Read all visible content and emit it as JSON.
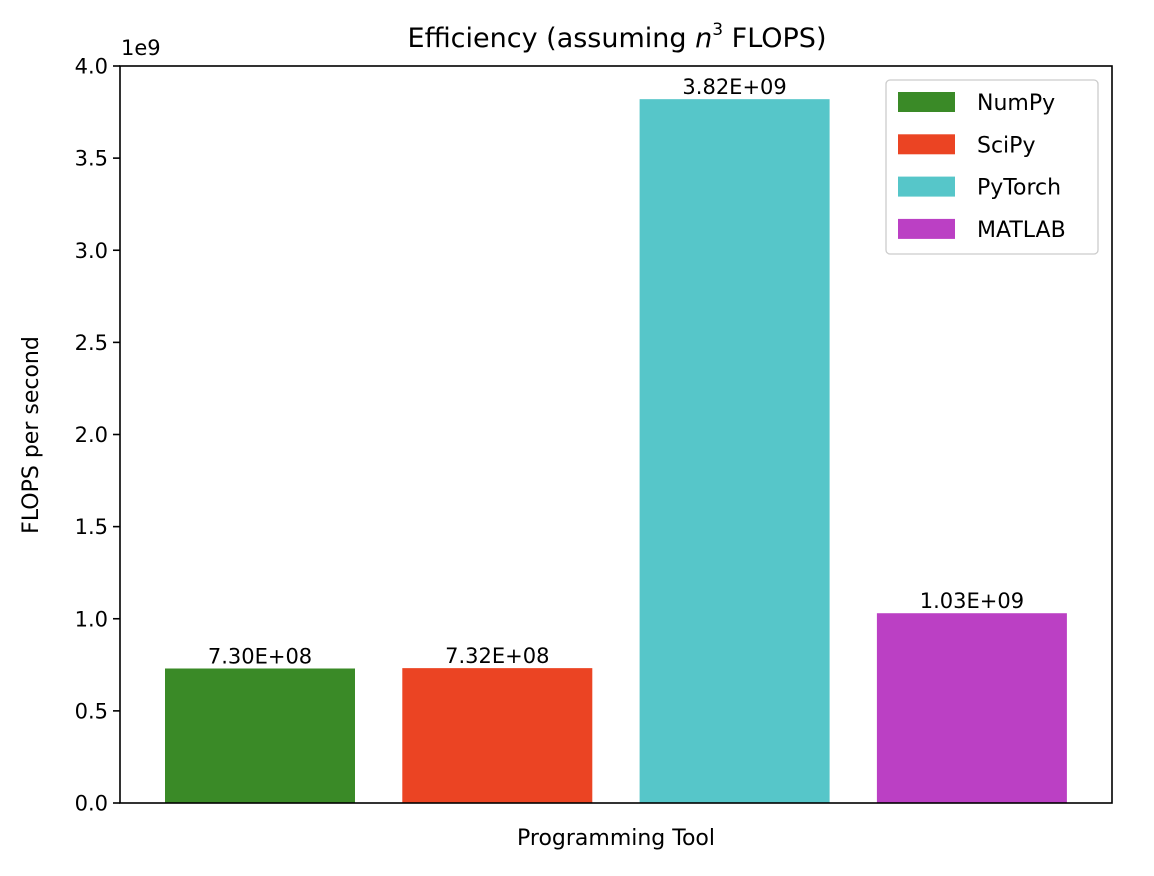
{
  "chart_data": {
    "type": "bar",
    "title_parts": {
      "before": "Efficiency (assuming ",
      "var": "n",
      "sup": "3",
      "after": " FLOPS)"
    },
    "xlabel": "Programming Tool",
    "ylabel": "FLOPS per second",
    "y_multiplier_label": "1e9",
    "ylim": [
      0,
      4.0
    ],
    "yticks": [
      0.0,
      0.5,
      1.0,
      1.5,
      2.0,
      2.5,
      3.0,
      3.5,
      4.0
    ],
    "ytick_labels": [
      "0.0",
      "0.5",
      "1.0",
      "1.5",
      "2.0",
      "2.5",
      "3.0",
      "3.5",
      "4.0"
    ],
    "grid": false,
    "legend_position": "upper right",
    "series": [
      {
        "name": "NumPy",
        "value": 730000000,
        "label": "7.30E+08",
        "color": "#3a8a27"
      },
      {
        "name": "SciPy",
        "value": 732000000,
        "label": "7.32E+08",
        "color": "#eb4423"
      },
      {
        "name": "PyTorch",
        "value": 3820000000,
        "label": "3.82E+09",
        "color": "#56c6c9"
      },
      {
        "name": "MATLAB",
        "value": 1030000000,
        "label": "1.03E+09",
        "color": "#bb40c4"
      }
    ]
  }
}
